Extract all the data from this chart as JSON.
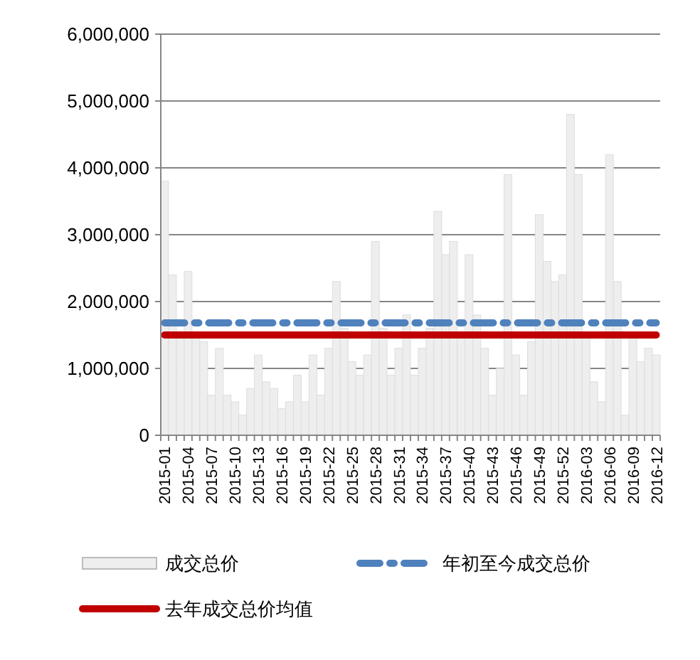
{
  "chart_data": {
    "type": "bar",
    "categories": [
      "2015-01",
      null,
      null,
      "2015-04",
      null,
      null,
      "2015-07",
      null,
      null,
      "2015-10",
      null,
      null,
      "2015-13",
      null,
      null,
      "2015-16",
      null,
      null,
      "2015-19",
      null,
      null,
      "2015-22",
      null,
      null,
      "2015-25",
      null,
      null,
      "2015-28",
      null,
      null,
      "2015-31",
      null,
      null,
      "2015-34",
      null,
      null,
      "2015-37",
      null,
      null,
      "2015-40",
      null,
      null,
      "2015-43",
      null,
      null,
      "2015-46",
      null,
      null,
      "2015-49",
      null,
      null,
      "2015-52",
      null,
      null,
      "2016-03",
      null,
      null,
      "2016-06",
      null,
      null,
      "2016-09",
      null,
      null,
      "2016-12"
    ],
    "series": [
      {
        "name": "成交总价",
        "color": "#eeeeee",
        "values": [
          3800000,
          2400000,
          1500000,
          2450000,
          1500000,
          1400000,
          600000,
          1300000,
          600000,
          500000,
          300000,
          700000,
          1200000,
          800000,
          700000,
          400000,
          500000,
          900000,
          500000,
          1200000,
          600000,
          1300000,
          2300000,
          1600000,
          1100000,
          900000,
          1200000,
          2900000,
          1600000,
          900000,
          1300000,
          1800000,
          900000,
          1300000,
          1600000,
          3350000,
          2700000,
          2900000,
          1500000,
          2700000,
          1800000,
          1300000,
          600000,
          1000000,
          3900000,
          1200000,
          600000,
          1400000,
          3300000,
          2600000,
          2300000,
          2400000,
          4800000,
          3900000,
          1500000,
          800000,
          500000,
          4200000,
          2300000,
          300000,
          1500000,
          1100000,
          1300000,
          1200000
        ]
      },
      {
        "name": "年初至今成交总价",
        "type": "line",
        "line_style": "dashed",
        "color": "#4f81bd",
        "values": [
          1680000,
          1680000,
          1680000,
          1680000,
          1680000,
          1680000,
          1680000,
          1680000,
          1680000,
          1680000,
          1680000,
          1680000,
          1680000,
          1680000,
          1680000,
          1680000,
          1680000,
          1680000,
          1680000,
          1680000,
          1680000,
          1680000,
          1680000,
          1680000,
          1680000,
          1680000,
          1680000,
          1680000,
          1680000,
          1680000,
          1680000,
          1680000,
          1680000,
          1680000,
          1680000,
          1680000,
          1680000,
          1680000,
          1680000,
          1680000,
          1680000,
          1680000,
          1680000,
          1680000,
          1680000,
          1680000,
          1680000,
          1680000,
          1680000,
          1680000,
          1680000,
          1680000,
          1680000,
          1680000,
          1680000,
          1680000,
          1680000,
          1680000,
          1680000,
          1680000,
          1680000,
          1680000,
          1680000,
          1680000
        ]
      },
      {
        "name": "去年成交总价均值",
        "type": "line",
        "line_style": "solid",
        "color": "#c00000",
        "values": [
          1500000,
          1500000,
          1500000,
          1500000,
          1500000,
          1500000,
          1500000,
          1500000,
          1500000,
          1500000,
          1500000,
          1500000,
          1500000,
          1500000,
          1500000,
          1500000,
          1500000,
          1500000,
          1500000,
          1500000,
          1500000,
          1500000,
          1500000,
          1500000,
          1500000,
          1500000,
          1500000,
          1500000,
          1500000,
          1500000,
          1500000,
          1500000,
          1500000,
          1500000,
          1500000,
          1500000,
          1500000,
          1500000,
          1500000,
          1500000,
          1500000,
          1500000,
          1500000,
          1500000,
          1500000,
          1500000,
          1500000,
          1500000,
          1500000,
          1500000,
          1500000,
          1500000,
          1500000,
          1500000,
          1500000,
          1500000,
          1500000,
          1500000,
          1500000,
          1500000,
          1500000,
          1500000,
          1500000,
          1500000
        ]
      }
    ],
    "ylim": [
      0,
      6000000
    ],
    "yticks": [
      0,
      {
        "value": 1000000,
        "label": "1,000,000"
      },
      {
        "value": 2000000,
        "label": "2,000,000"
      },
      {
        "value": 3000000,
        "label": "3,000,000"
      },
      {
        "value": 4000000,
        "label": "4,000,000"
      },
      {
        "value": 5000000,
        "label": "5,000,000"
      },
      {
        "value": 6000000,
        "label": "6,000,000"
      }
    ],
    "grid": "y",
    "legend": "bottom"
  }
}
